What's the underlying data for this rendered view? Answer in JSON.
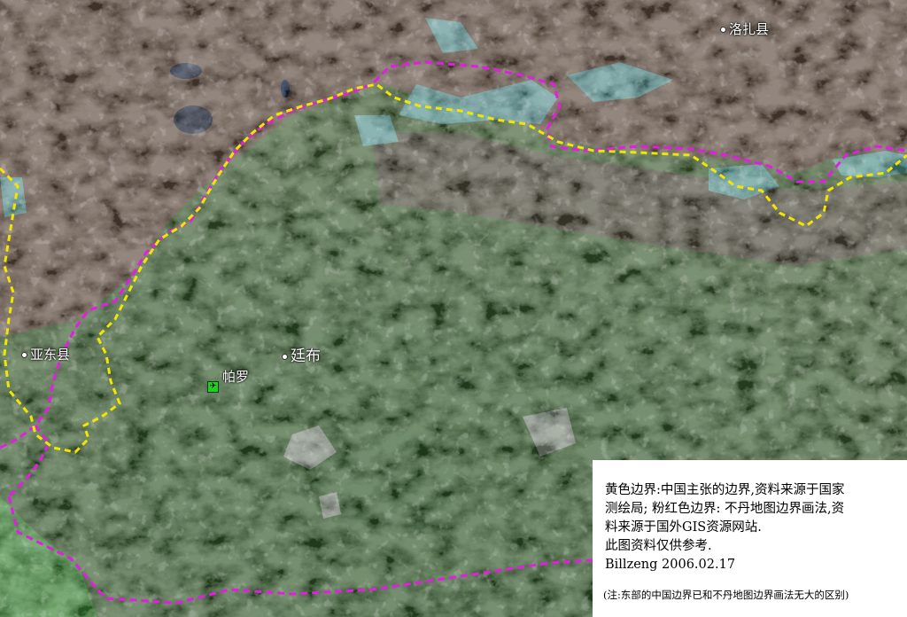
{
  "map": {
    "places": [
      {
        "id": "luozha",
        "label": "洛扎县"
      },
      {
        "id": "yadong",
        "label": "亚东县"
      },
      {
        "id": "paro",
        "label": "帕罗"
      },
      {
        "id": "thimphu",
        "label": "廷布"
      }
    ],
    "airport_icon": "airport-icon",
    "colors": {
      "china_border": "#f2e600",
      "bhutan_border": "#e21ee0",
      "snow": "#6ee7e7",
      "forest": "#4d8a3c",
      "lowland": "#4fc64a"
    }
  },
  "legend": {
    "lines": [
      "黄色边界:中国主张的边界,资料来源于国家",
      "测绘局; 粉红色边界: 不丹地图边界画法,资",
      "料来源于国外GIS资源网站.",
      "此图资料仅供参考.",
      "Billzeng 2006.02.17"
    ],
    "note": "(注:东部的中国边界已和不丹地图边界画法无大的区别)"
  }
}
